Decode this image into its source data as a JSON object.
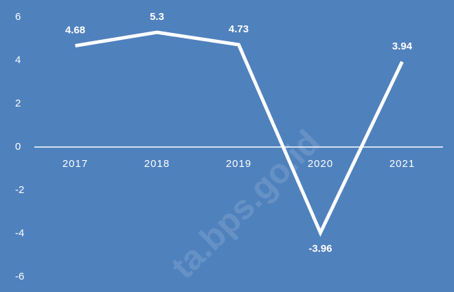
{
  "chart_data": {
    "type": "line",
    "categories": [
      "2017",
      "2018",
      "2019",
      "2020",
      "2021"
    ],
    "values": [
      4.68,
      5.3,
      4.73,
      -3.96,
      3.94
    ],
    "color": "#ffffff",
    "background": "#4f81bd",
    "ylim": [
      -6,
      6
    ],
    "yticks": [
      -6,
      -4,
      -2,
      0,
      2,
      4,
      6
    ],
    "grid": false,
    "watermark": "ta.bps.go.id"
  }
}
